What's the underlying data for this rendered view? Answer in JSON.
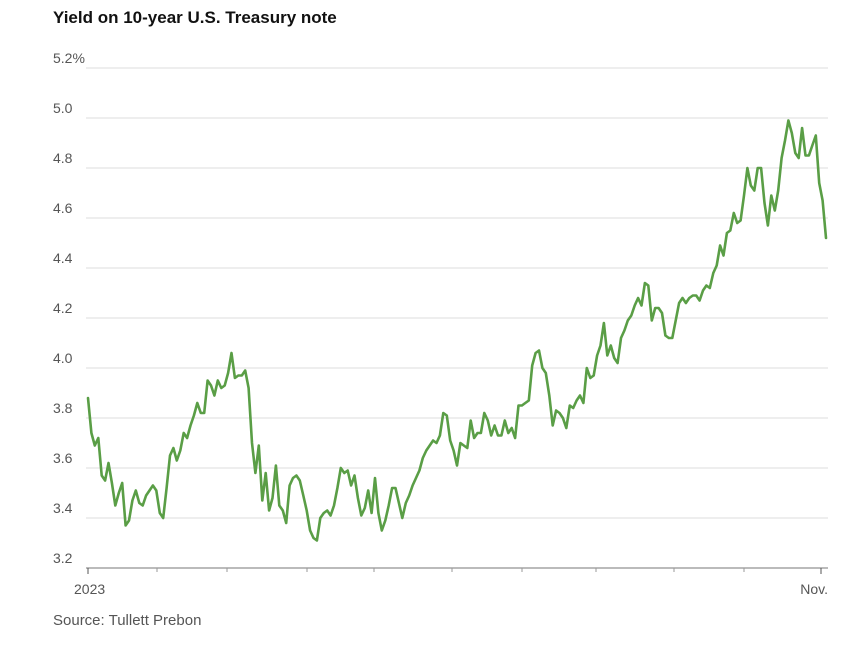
{
  "chart_data": {
    "type": "line",
    "title": "Yield on 10-year U.S. Treasury note",
    "source": "Source: Tullett Prebon",
    "xlabel": "",
    "ylabel": "",
    "ylim": [
      3.2,
      5.2
    ],
    "y_ticks": [
      3.2,
      3.4,
      3.6,
      3.8,
      4.0,
      4.2,
      4.4,
      4.6,
      4.8,
      5.0,
      5.2
    ],
    "y_tick_labels": [
      "3.2",
      "3.4",
      "3.6",
      "3.8",
      "4.0",
      "4.2",
      "4.4",
      "4.6",
      "4.8",
      "5.0",
      "5.2%"
    ],
    "x_tick_labels": [
      "2023",
      "Nov."
    ],
    "x_period": "Jan. 2023 – early Nov. 2023 (daily)",
    "grid": true,
    "color": "#5a9e46",
    "series": [
      {
        "name": "10-year yield",
        "values": [
          3.88,
          3.74,
          3.69,
          3.72,
          3.57,
          3.55,
          3.62,
          3.54,
          3.45,
          3.5,
          3.54,
          3.37,
          3.39,
          3.47,
          3.51,
          3.46,
          3.45,
          3.49,
          3.51,
          3.53,
          3.51,
          3.42,
          3.4,
          3.52,
          3.65,
          3.68,
          3.63,
          3.67,
          3.74,
          3.72,
          3.77,
          3.81,
          3.86,
          3.82,
          3.82,
          3.95,
          3.93,
          3.89,
          3.95,
          3.92,
          3.93,
          3.98,
          4.06,
          3.96,
          3.97,
          3.97,
          3.99,
          3.92,
          3.7,
          3.58,
          3.69,
          3.47,
          3.58,
          3.43,
          3.48,
          3.61,
          3.45,
          3.43,
          3.38,
          3.53,
          3.56,
          3.57,
          3.55,
          3.49,
          3.43,
          3.35,
          3.32,
          3.31,
          3.4,
          3.42,
          3.43,
          3.41,
          3.45,
          3.52,
          3.6,
          3.58,
          3.59,
          3.53,
          3.57,
          3.48,
          3.41,
          3.44,
          3.51,
          3.42,
          3.56,
          3.42,
          3.35,
          3.39,
          3.45,
          3.52,
          3.52,
          3.46,
          3.4,
          3.46,
          3.49,
          3.53,
          3.56,
          3.59,
          3.64,
          3.67,
          3.69,
          3.71,
          3.7,
          3.73,
          3.82,
          3.81,
          3.71,
          3.67,
          3.61,
          3.7,
          3.69,
          3.68,
          3.79,
          3.72,
          3.74,
          3.74,
          3.82,
          3.79,
          3.73,
          3.77,
          3.73,
          3.73,
          3.79,
          3.74,
          3.76,
          3.72,
          3.85,
          3.85,
          3.86,
          3.87,
          4.01,
          4.06,
          4.07,
          4.0,
          3.98,
          3.89,
          3.77,
          3.83,
          3.82,
          3.8,
          3.76,
          3.85,
          3.84,
          3.87,
          3.89,
          3.86,
          4.0,
          3.96,
          3.97,
          4.05,
          4.09,
          4.18,
          4.05,
          4.09,
          4.04,
          4.02,
          4.12,
          4.15,
          4.19,
          4.21,
          4.25,
          4.28,
          4.25,
          4.34,
          4.33,
          4.19,
          4.24,
          4.24,
          4.22,
          4.13,
          4.12,
          4.12,
          4.19,
          4.26,
          4.28,
          4.26,
          4.28,
          4.29,
          4.29,
          4.27,
          4.31,
          4.33,
          4.32,
          4.38,
          4.41,
          4.49,
          4.45,
          4.54,
          4.55,
          4.62,
          4.58,
          4.59,
          4.69,
          4.8,
          4.73,
          4.71,
          4.8,
          4.8,
          4.66,
          4.57,
          4.69,
          4.63,
          4.71,
          4.84,
          4.91,
          4.99,
          4.94,
          4.86,
          4.84,
          4.96,
          4.85,
          4.85,
          4.89,
          4.93,
          4.74,
          4.67,
          4.52
        ]
      }
    ]
  }
}
